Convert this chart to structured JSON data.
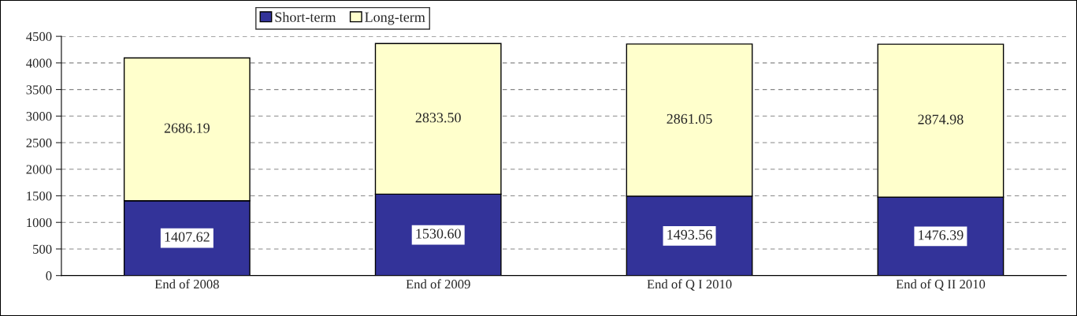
{
  "chart_data": {
    "type": "bar",
    "stacked": true,
    "categories": [
      "End of 2008",
      "End of 2009",
      "End of Q I 2010",
      "End of Q II 2010"
    ],
    "series": [
      {
        "name": "Short-term",
        "color": "#333399",
        "values": [
          1407.62,
          1530.6,
          1493.56,
          1476.39
        ],
        "value_labels": [
          "1407.62",
          "1530.60",
          "1493.56",
          "1476.39"
        ]
      },
      {
        "name": "Long-term",
        "color": "#ffffcc",
        "values": [
          2686.19,
          2833.5,
          2861.05,
          2874.98
        ],
        "value_labels": [
          "2686.19",
          "2833.50",
          "2861.05",
          "2874.98"
        ]
      }
    ],
    "ylim": [
      0,
      4500
    ],
    "yticks": [
      0,
      500,
      1000,
      1500,
      2000,
      2500,
      3000,
      3500,
      4000,
      4500
    ],
    "grid": "y",
    "legend": "top"
  }
}
